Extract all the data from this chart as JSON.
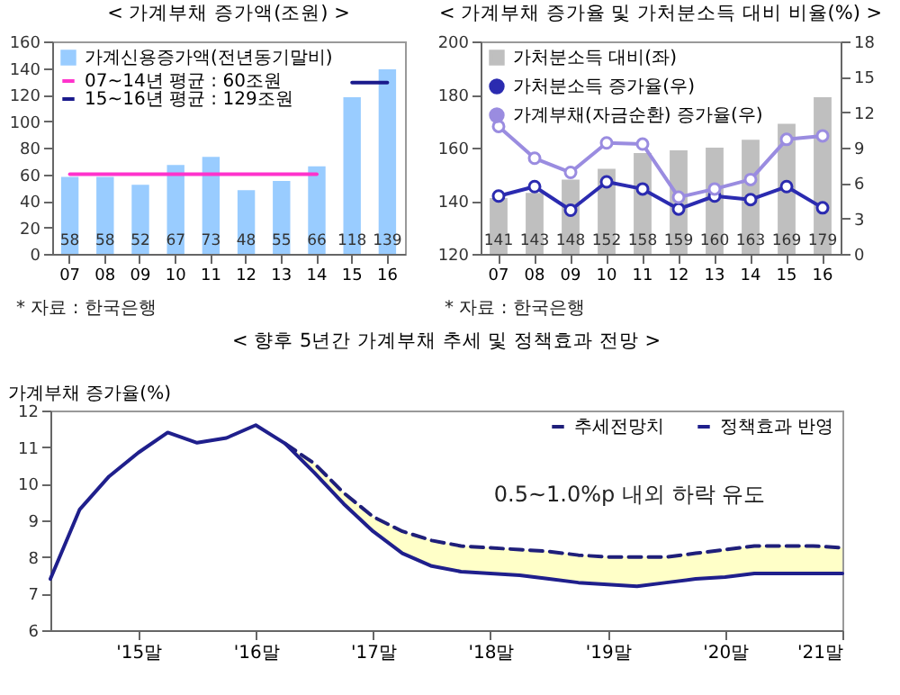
{
  "chart_data": [
    {
      "type": "bar",
      "title": "< 가계부채 증가액(조원) >",
      "categories": [
        "07",
        "08",
        "09",
        "10",
        "11",
        "12",
        "13",
        "14",
        "15",
        "16"
      ],
      "series": [
        {
          "name": "가계신용증가액(전년동기말비)",
          "color": "#99ccff",
          "values": [
            58,
            58,
            52,
            67,
            73,
            48,
            55,
            66,
            118,
            139
          ],
          "value_labels": [
            "58",
            "58",
            "52",
            "67",
            "73",
            "48",
            "55",
            "66",
            "118",
            "139"
          ]
        },
        {
          "type": "line",
          "name": "07~14년 평균 : 60조원",
          "color": "#ff33cc",
          "values": [
            60,
            60,
            60,
            60,
            60,
            60,
            60,
            60,
            null,
            null
          ]
        },
        {
          "type": "line",
          "name": "15~16년 평균 : 129조원",
          "color": "#1a1a8c",
          "values": [
            null,
            null,
            null,
            null,
            null,
            null,
            null,
            null,
            129,
            129
          ]
        }
      ],
      "ylim": [
        0,
        160
      ],
      "yticks": [
        0,
        20,
        40,
        60,
        80,
        100,
        120,
        140,
        160
      ],
      "grid": false,
      "legend": "top left",
      "annotations": [
        "* 자료 : 한국은행"
      ]
    },
    {
      "type": "bar",
      "title": "< 가계부채 증가율 및 가처분소득 대비 비율(%) >",
      "categories": [
        "07",
        "08",
        "09",
        "10",
        "11",
        "12",
        "13",
        "14",
        "15",
        "16"
      ],
      "series": [
        {
          "name": "가처분소득 대비(좌)",
          "color": "#bfbfbf",
          "values": [
            141,
            143,
            148,
            152,
            158,
            159,
            160,
            163,
            169,
            179
          ],
          "value_labels": [
            "141",
            "143",
            "148",
            "152",
            "158",
            "159",
            "160",
            "163",
            "169",
            "179"
          ]
        },
        {
          "type": "line",
          "axis": "y2",
          "name": "가처분소득 증가율(우)",
          "color": "#2b2bb0",
          "values": [
            4.9,
            5.7,
            3.7,
            6.1,
            5.5,
            3.8,
            4.9,
            4.6,
            5.7,
            3.9
          ]
        },
        {
          "type": "line",
          "axis": "y2",
          "name": "가계부채(자금순환) 증가율(우)",
          "color": "#9a8ce0",
          "values": [
            10.8,
            8.1,
            6.9,
            9.4,
            9.3,
            4.8,
            5.5,
            6.3,
            9.7,
            10.0
          ]
        }
      ],
      "marker": "circle",
      "ylim": [
        120,
        200
      ],
      "yticks": [
        120,
        140,
        160,
        180,
        200
      ],
      "y2lim": [
        0,
        18
      ],
      "y2ticks": [
        0,
        3,
        6,
        9,
        12,
        15,
        18
      ],
      "grid": false,
      "legend": "top left",
      "annotations": [
        "* 자료 : 한국은행"
      ]
    },
    {
      "type": "line",
      "title": "< 향후 5년간 가계부채 추세 및 정책효과 전망 >",
      "ylabel": "가계부채 증가율(%)",
      "series": [
        {
          "name": "추세전망치",
          "color": "#1f1f7a",
          "line_style": "dashed",
          "x": [
            16.25,
            16.5,
            16.75,
            17,
            17.25,
            17.5,
            17.75,
            18,
            18.25,
            18.5,
            18.75,
            19,
            19.25,
            19.5,
            19.75,
            20,
            20.25,
            20.5,
            20.75,
            21
          ],
          "values": [
            11.1,
            10.55,
            9.75,
            9.1,
            8.7,
            8.45,
            8.3,
            8.25,
            8.2,
            8.15,
            8.05,
            8.0,
            8.0,
            8.0,
            8.1,
            8.2,
            8.3,
            8.3,
            8.3,
            8.25
          ],
          "lower": [
            11.1,
            10.3,
            9.45,
            8.7,
            8.1,
            7.75,
            7.6,
            7.55,
            7.5,
            7.4,
            7.3,
            7.25,
            7.2,
            7.3,
            7.4,
            7.45,
            7.55,
            7.55,
            7.55,
            7.55
          ],
          "upper": [
            11.1,
            10.55,
            9.75,
            9.1,
            8.7,
            8.45,
            8.3,
            8.25,
            8.2,
            8.15,
            8.05,
            8.0,
            8.0,
            8.0,
            8.1,
            8.2,
            8.3,
            8.3,
            8.3,
            8.25
          ]
        },
        {
          "name": "정책효과 반영",
          "color": "#1f1f8c",
          "line_style": "solid",
          "x": [
            14.25,
            14.5,
            14.75,
            15,
            15.25,
            15.5,
            15.75,
            16,
            16.25,
            16.5,
            16.75,
            17,
            17.25,
            17.5,
            17.75,
            18,
            18.25,
            18.5,
            18.75,
            19,
            19.25,
            19.5,
            19.75,
            20,
            20.25,
            20.5,
            20.75,
            21
          ],
          "values": [
            7.4,
            9.3,
            10.2,
            10.85,
            11.4,
            11.12,
            11.25,
            11.6,
            11.1,
            10.3,
            9.45,
            8.7,
            8.1,
            7.75,
            7.6,
            7.55,
            7.5,
            7.4,
            7.3,
            7.25,
            7.2,
            7.3,
            7.4,
            7.45,
            7.55,
            7.55,
            7.55,
            7.55
          ]
        }
      ],
      "xlim": [
        14.25,
        21
      ],
      "xticks": [
        {
          "value": 15,
          "label": "'15말"
        },
        {
          "value": 16,
          "label": "'16말"
        },
        {
          "value": 17,
          "label": "'17말"
        },
        {
          "value": 18,
          "label": "'18말"
        },
        {
          "value": 19,
          "label": "'19말"
        },
        {
          "value": 20,
          "label": "'20말"
        },
        {
          "value": 21,
          "label": "'21말"
        }
      ],
      "ylim": [
        6,
        12
      ],
      "yticks": [
        6,
        7,
        8,
        9,
        10,
        11,
        12
      ],
      "grid": false,
      "legend": "top right",
      "annotations": [
        "0.5~1.0%p 내외 하락 유도"
      ]
    }
  ]
}
